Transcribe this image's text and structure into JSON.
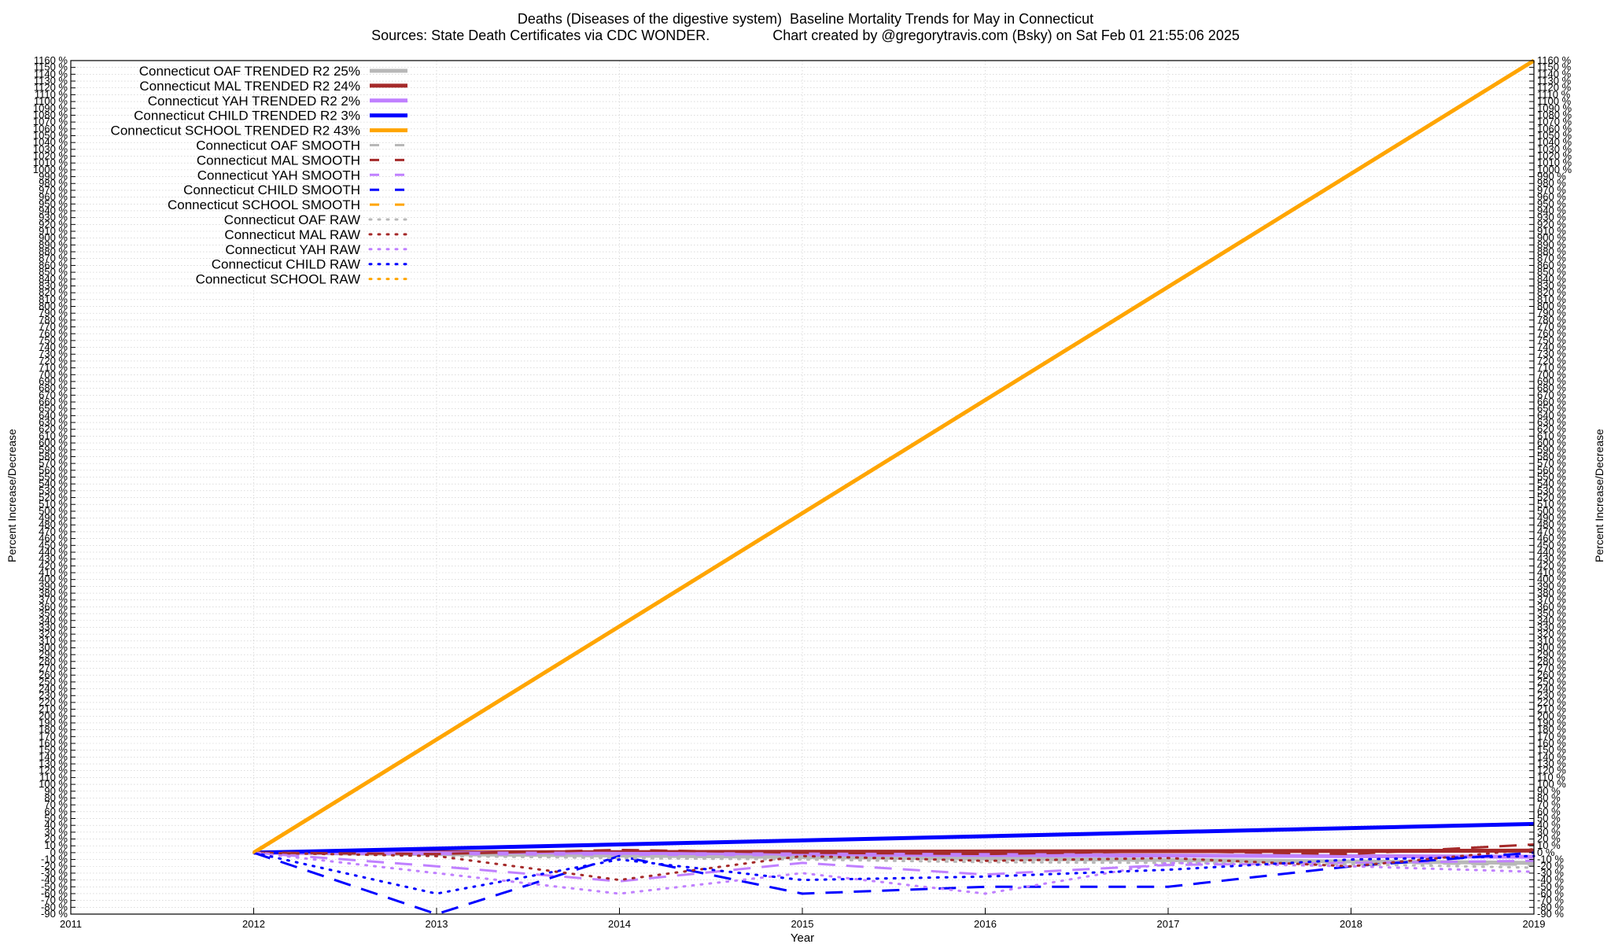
{
  "title": "Deaths (Diseases of the digestive system)  Baseline Mortality Trends for May in Connecticut",
  "subtitle": "Sources: State Death Certificates via CDC WONDER.                Chart created by @gregorytravis.com (Bsky) on Sat Feb 01 21:55:06 2025",
  "chart_data": {
    "type": "line",
    "title": "Deaths (Diseases of the digestive system)  Baseline Mortality Trends for May in Connecticut",
    "xlabel": "Year",
    "ylabel": "Percent Increase/Decrease",
    "y2label": "Percent Increase/Decrease",
    "xlim": [
      2011,
      2019
    ],
    "ylim": [
      -90,
      1160
    ],
    "ytick_step": 10,
    "ytick_suffix": " %",
    "xticks": [
      2011,
      2012,
      2013,
      2014,
      2015,
      2016,
      2017,
      2018,
      2019
    ],
    "grid": true,
    "legend_position": "top-left",
    "series": [
      {
        "name": "Connecticut OAF TRENDED R2  25%",
        "style": "solid",
        "color": "#b8b8b8",
        "x": [
          2012,
          2019
        ],
        "y": [
          0,
          -15
        ]
      },
      {
        "name": "Connecticut MAL TRENDED R2  24%",
        "style": "solid",
        "color": "#a52a2a",
        "x": [
          2012,
          2019
        ],
        "y": [
          0,
          3
        ]
      },
      {
        "name": "Connecticut YAH TRENDED R2   2%",
        "style": "solid",
        "color": "#c080ff",
        "x": [
          2012,
          2019
        ],
        "y": [
          0,
          -6
        ]
      },
      {
        "name": "Connecticut CHILD TRENDED R2   3%",
        "style": "solid",
        "color": "#0000ff",
        "x": [
          2012,
          2019
        ],
        "y": [
          0,
          42
        ]
      },
      {
        "name": "Connecticut SCHOOL TRENDED R2  43%",
        "style": "solid",
        "color": "#ffa500",
        "x": [
          2012,
          2019
        ],
        "y": [
          0,
          1160
        ]
      },
      {
        "name": "Connecticut OAF SMOOTH",
        "style": "dashed",
        "color": "#b8b8b8",
        "x": [
          2012,
          2013,
          2014,
          2015,
          2016,
          2017,
          2018,
          2019
        ],
        "y": [
          0,
          -3,
          -5,
          -6,
          -10,
          -12,
          -14,
          -18
        ]
      },
      {
        "name": "Connecticut MAL SMOOTH",
        "style": "dashed",
        "color": "#a52a2a",
        "x": [
          2012,
          2013,
          2014,
          2015,
          2016,
          2017,
          2018,
          2019
        ],
        "y": [
          0,
          -2,
          4,
          0,
          -2,
          2,
          -2,
          12
        ]
      },
      {
        "name": "Connecticut YAH SMOOTH",
        "style": "dashed",
        "color": "#c080ff",
        "x": [
          2012,
          2013,
          2014,
          2015,
          2016,
          2017,
          2018,
          2019
        ],
        "y": [
          0,
          -20,
          -42,
          -15,
          -32,
          -18,
          -15,
          -12
        ]
      },
      {
        "name": "Connecticut CHILD SMOOTH",
        "style": "dashed",
        "color": "#0000ff",
        "x": [
          2012,
          2013,
          2014,
          2015,
          2016,
          2017,
          2018,
          2019
        ],
        "y": [
          0,
          -90,
          -5,
          -60,
          -50,
          -50,
          -20,
          0
        ]
      },
      {
        "name": "Connecticut SCHOOL SMOOTH",
        "style": "dashed",
        "color": "#ffa500",
        "x": [
          2012,
          2019
        ],
        "y": [
          0,
          1160
        ]
      },
      {
        "name": "Connecticut OAF RAW",
        "style": "dotted",
        "color": "#b8b8b8",
        "x": [
          2012,
          2013,
          2014,
          2015,
          2016,
          2017,
          2018,
          2019
        ],
        "y": [
          0,
          -5,
          -8,
          -10,
          -14,
          -15,
          -17,
          -22
        ]
      },
      {
        "name": "Connecticut MAL RAW",
        "style": "dotted",
        "color": "#a52a2a",
        "x": [
          2012,
          2013,
          2014,
          2015,
          2016,
          2017,
          2018,
          2019
        ],
        "y": [
          0,
          -5,
          -40,
          -5,
          -12,
          -8,
          -20,
          5
        ]
      },
      {
        "name": "Connecticut YAH RAW",
        "style": "dotted",
        "color": "#c080ff",
        "x": [
          2012,
          2013,
          2014,
          2015,
          2016,
          2017,
          2018,
          2019
        ],
        "y": [
          0,
          -30,
          -60,
          -30,
          -60,
          -15,
          -20,
          -28
        ]
      },
      {
        "name": "Connecticut CHILD RAW",
        "style": "dotted",
        "color": "#0000ff",
        "x": [
          2012,
          2013,
          2014,
          2015,
          2016,
          2017,
          2018,
          2019
        ],
        "y": [
          0,
          -60,
          -10,
          -40,
          -35,
          -25,
          -10,
          -5
        ]
      },
      {
        "name": "Connecticut SCHOOL RAW",
        "style": "dotted",
        "color": "#ffa500",
        "x": [
          2012,
          2019
        ],
        "y": [
          0,
          1160
        ]
      }
    ]
  }
}
